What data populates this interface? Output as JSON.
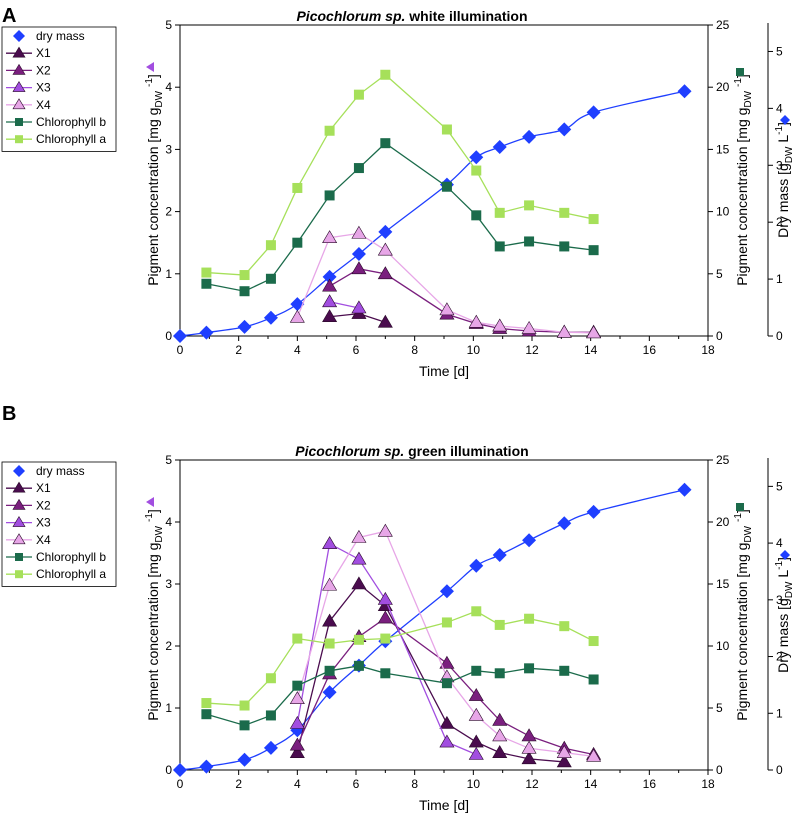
{
  "chart_data": [
    {
      "panel_label": "A",
      "type": "line",
      "title": "Picochlorum sp. white illumination",
      "title_italic": "Picochlorum sp.",
      "title_rest": " white illumination",
      "xlabel": "Time [d]",
      "ylabel_left": "Pigment concentration [mg g",
      "ylabel_right1": "Pigment concentration [mg g",
      "ylabel_right2": "Dry mass [g",
      "xlim": [
        0,
        18
      ],
      "ylim_left": [
        0,
        5
      ],
      "ylim_right1": [
        0,
        25
      ],
      "ylim_right2": [
        0,
        5.5
      ],
      "xticks": [
        0,
        2,
        4,
        6,
        8,
        10,
        12,
        14,
        16,
        18
      ],
      "yticks_left": [
        0,
        1,
        2,
        3,
        4,
        5
      ],
      "yticks_right1": [
        0,
        5,
        10,
        15,
        20,
        25
      ],
      "yticks_right2": [
        0,
        1,
        2,
        3,
        4,
        5
      ],
      "legend": [
        "dry mass",
        "X1",
        "X2",
        "X3",
        "X4",
        "Chlorophyll b",
        "Chlorophyll a"
      ],
      "series": [
        {
          "name": "dry mass",
          "axis": "right2",
          "color": "#1f3fff",
          "marker": "diamond",
          "x": [
            0,
            0.9,
            2.2,
            3.1,
            4.0,
            5.1,
            6.1,
            7.0,
            9.1,
            10.1,
            10.9,
            11.9,
            13.1,
            14.1,
            17.2
          ],
          "y": [
            0.0,
            0.06,
            0.16,
            0.32,
            0.56,
            1.04,
            1.44,
            1.83,
            2.66,
            3.14,
            3.32,
            3.5,
            3.63,
            3.93,
            4.3
          ]
        },
        {
          "name": "X1",
          "axis": "left",
          "color": "#4a0c4e",
          "marker": "triangle",
          "x": [
            5.1,
            6.1,
            7.0
          ],
          "y": [
            0.31,
            0.36,
            0.22
          ]
        },
        {
          "name": "X2",
          "axis": "left",
          "color": "#7a1f7e",
          "marker": "triangle",
          "x": [
            5.1,
            6.1,
            7.0,
            9.1,
            10.1,
            10.9,
            11.9,
            13.1,
            14.1
          ],
          "y": [
            0.8,
            1.08,
            1.0,
            0.35,
            0.2,
            0.12,
            0.08,
            0.06,
            0.06
          ]
        },
        {
          "name": "X3",
          "axis": "left",
          "color": "#a24ee0",
          "marker": "triangle",
          "x": [
            5.1,
            6.1
          ],
          "y": [
            0.55,
            0.45
          ]
        },
        {
          "name": "X4",
          "axis": "left",
          "color": "#e7a6e7",
          "marker": "triangle",
          "x": [
            4.0,
            5.1,
            6.1,
            7.0,
            9.1,
            10.1,
            10.9,
            11.9,
            13.1,
            14.1
          ],
          "y": [
            0.3,
            1.58,
            1.65,
            1.38,
            0.42,
            0.22,
            0.16,
            0.12,
            0.06,
            0.05
          ]
        },
        {
          "name": "Chlorophyll b",
          "axis": "right1",
          "color": "#1b6b4b",
          "marker": "square",
          "x": [
            0.9,
            2.2,
            3.1,
            4.0,
            5.1,
            6.1,
            7.0,
            9.1,
            10.1,
            10.9,
            11.9,
            13.1,
            14.1
          ],
          "y": [
            4.2,
            3.6,
            4.6,
            7.5,
            11.3,
            13.5,
            15.5,
            12.0,
            9.7,
            7.2,
            7.6,
            7.2,
            6.9
          ]
        },
        {
          "name": "Chlorophyll a",
          "axis": "right1",
          "color": "#a6e05a",
          "marker": "square",
          "x": [
            0.9,
            2.2,
            3.1,
            4.0,
            5.1,
            6.1,
            7.0,
            9.1,
            10.1,
            10.9,
            11.9,
            13.1,
            14.1
          ],
          "y": [
            5.1,
            4.9,
            7.3,
            11.9,
            16.5,
            19.4,
            21.0,
            16.6,
            13.3,
            9.9,
            10.5,
            9.9,
            9.4
          ]
        }
      ]
    },
    {
      "panel_label": "B",
      "type": "line",
      "title": "Picochlorum sp. green illumination",
      "title_italic": "Picochlorum sp.",
      "title_rest": " green illumination",
      "xlabel": "Time [d]",
      "ylabel_left": "Pigment concentration [mg g",
      "ylabel_right1": "Pigment concentration [mg g",
      "ylabel_right2": "Dry mass [g",
      "xlim": [
        0,
        18
      ],
      "ylim_left": [
        0,
        5
      ],
      "ylim_right1": [
        0,
        25
      ],
      "ylim_right2": [
        0,
        5.5
      ],
      "xticks": [
        0,
        2,
        4,
        6,
        8,
        10,
        12,
        14,
        16,
        18
      ],
      "yticks_left": [
        0,
        1,
        2,
        3,
        4,
        5
      ],
      "yticks_right1": [
        0,
        5,
        10,
        15,
        20,
        25
      ],
      "yticks_right2": [
        0,
        1,
        2,
        3,
        4,
        5
      ],
      "legend": [
        "dry mass",
        "X1",
        "X2",
        "X3",
        "X4",
        "Chlorophyll b",
        "Chlorophyll a"
      ],
      "series": [
        {
          "name": "dry mass",
          "axis": "right2",
          "color": "#1f3fff",
          "marker": "diamond",
          "x": [
            0,
            0.9,
            2.2,
            3.1,
            4.0,
            5.1,
            6.1,
            7.0,
            9.1,
            10.1,
            10.9,
            11.9,
            13.1,
            14.1,
            17.2
          ],
          "y": [
            0.0,
            0.06,
            0.18,
            0.39,
            0.7,
            1.37,
            1.84,
            2.27,
            3.15,
            3.6,
            3.79,
            4.05,
            4.35,
            4.55,
            4.94
          ]
        },
        {
          "name": "X1",
          "axis": "left",
          "color": "#4a0c4e",
          "marker": "triangle",
          "x": [
            4.0,
            5.1,
            6.1,
            7.0,
            9.1,
            10.1,
            10.9,
            11.9,
            13.1
          ],
          "y": [
            0.28,
            2.4,
            3.0,
            2.65,
            0.75,
            0.45,
            0.28,
            0.18,
            0.13
          ]
        },
        {
          "name": "X2",
          "axis": "left",
          "color": "#7a1f7e",
          "marker": "triangle",
          "x": [
            4.0,
            5.1,
            6.1,
            7.0,
            9.1,
            10.1,
            10.9,
            11.9,
            13.1,
            14.1
          ],
          "y": [
            0.4,
            1.55,
            2.15,
            2.45,
            1.72,
            1.2,
            0.8,
            0.55,
            0.35,
            0.25
          ]
        },
        {
          "name": "X3",
          "axis": "left",
          "color": "#a24ee0",
          "marker": "triangle",
          "x": [
            4.0,
            5.1,
            6.1,
            7.0,
            9.1,
            10.1
          ],
          "y": [
            0.75,
            3.65,
            3.4,
            2.75,
            0.45,
            0.25
          ]
        },
        {
          "name": "X4",
          "axis": "left",
          "color": "#e7a6e7",
          "marker": "triangle",
          "x": [
            4.0,
            5.1,
            6.1,
            7.0,
            9.1,
            10.1,
            10.9,
            11.9,
            13.1,
            14.1
          ],
          "y": [
            1.15,
            2.98,
            3.75,
            3.85,
            1.5,
            0.88,
            0.55,
            0.35,
            0.28,
            0.22
          ]
        },
        {
          "name": "Chlorophyll b",
          "axis": "right1",
          "color": "#1b6b4b",
          "marker": "square",
          "x": [
            0.9,
            2.2,
            3.1,
            4.0,
            5.1,
            6.1,
            7.0,
            9.1,
            10.1,
            10.9,
            11.9,
            13.1,
            14.1
          ],
          "y": [
            4.5,
            3.6,
            4.4,
            6.8,
            8.0,
            8.4,
            7.8,
            7.0,
            8.0,
            7.8,
            8.2,
            8.0,
            7.3
          ]
        },
        {
          "name": "Chlorophyll a",
          "axis": "right1",
          "color": "#a6e05a",
          "marker": "square",
          "x": [
            0.9,
            2.2,
            3.1,
            4.0,
            5.1,
            6.1,
            7.0,
            9.1,
            10.1,
            10.9,
            11.9,
            13.1,
            14.1
          ],
          "y": [
            5.4,
            5.2,
            7.4,
            10.6,
            10.2,
            10.5,
            10.6,
            11.9,
            12.8,
            11.7,
            12.2,
            11.6,
            10.4
          ]
        }
      ]
    }
  ]
}
